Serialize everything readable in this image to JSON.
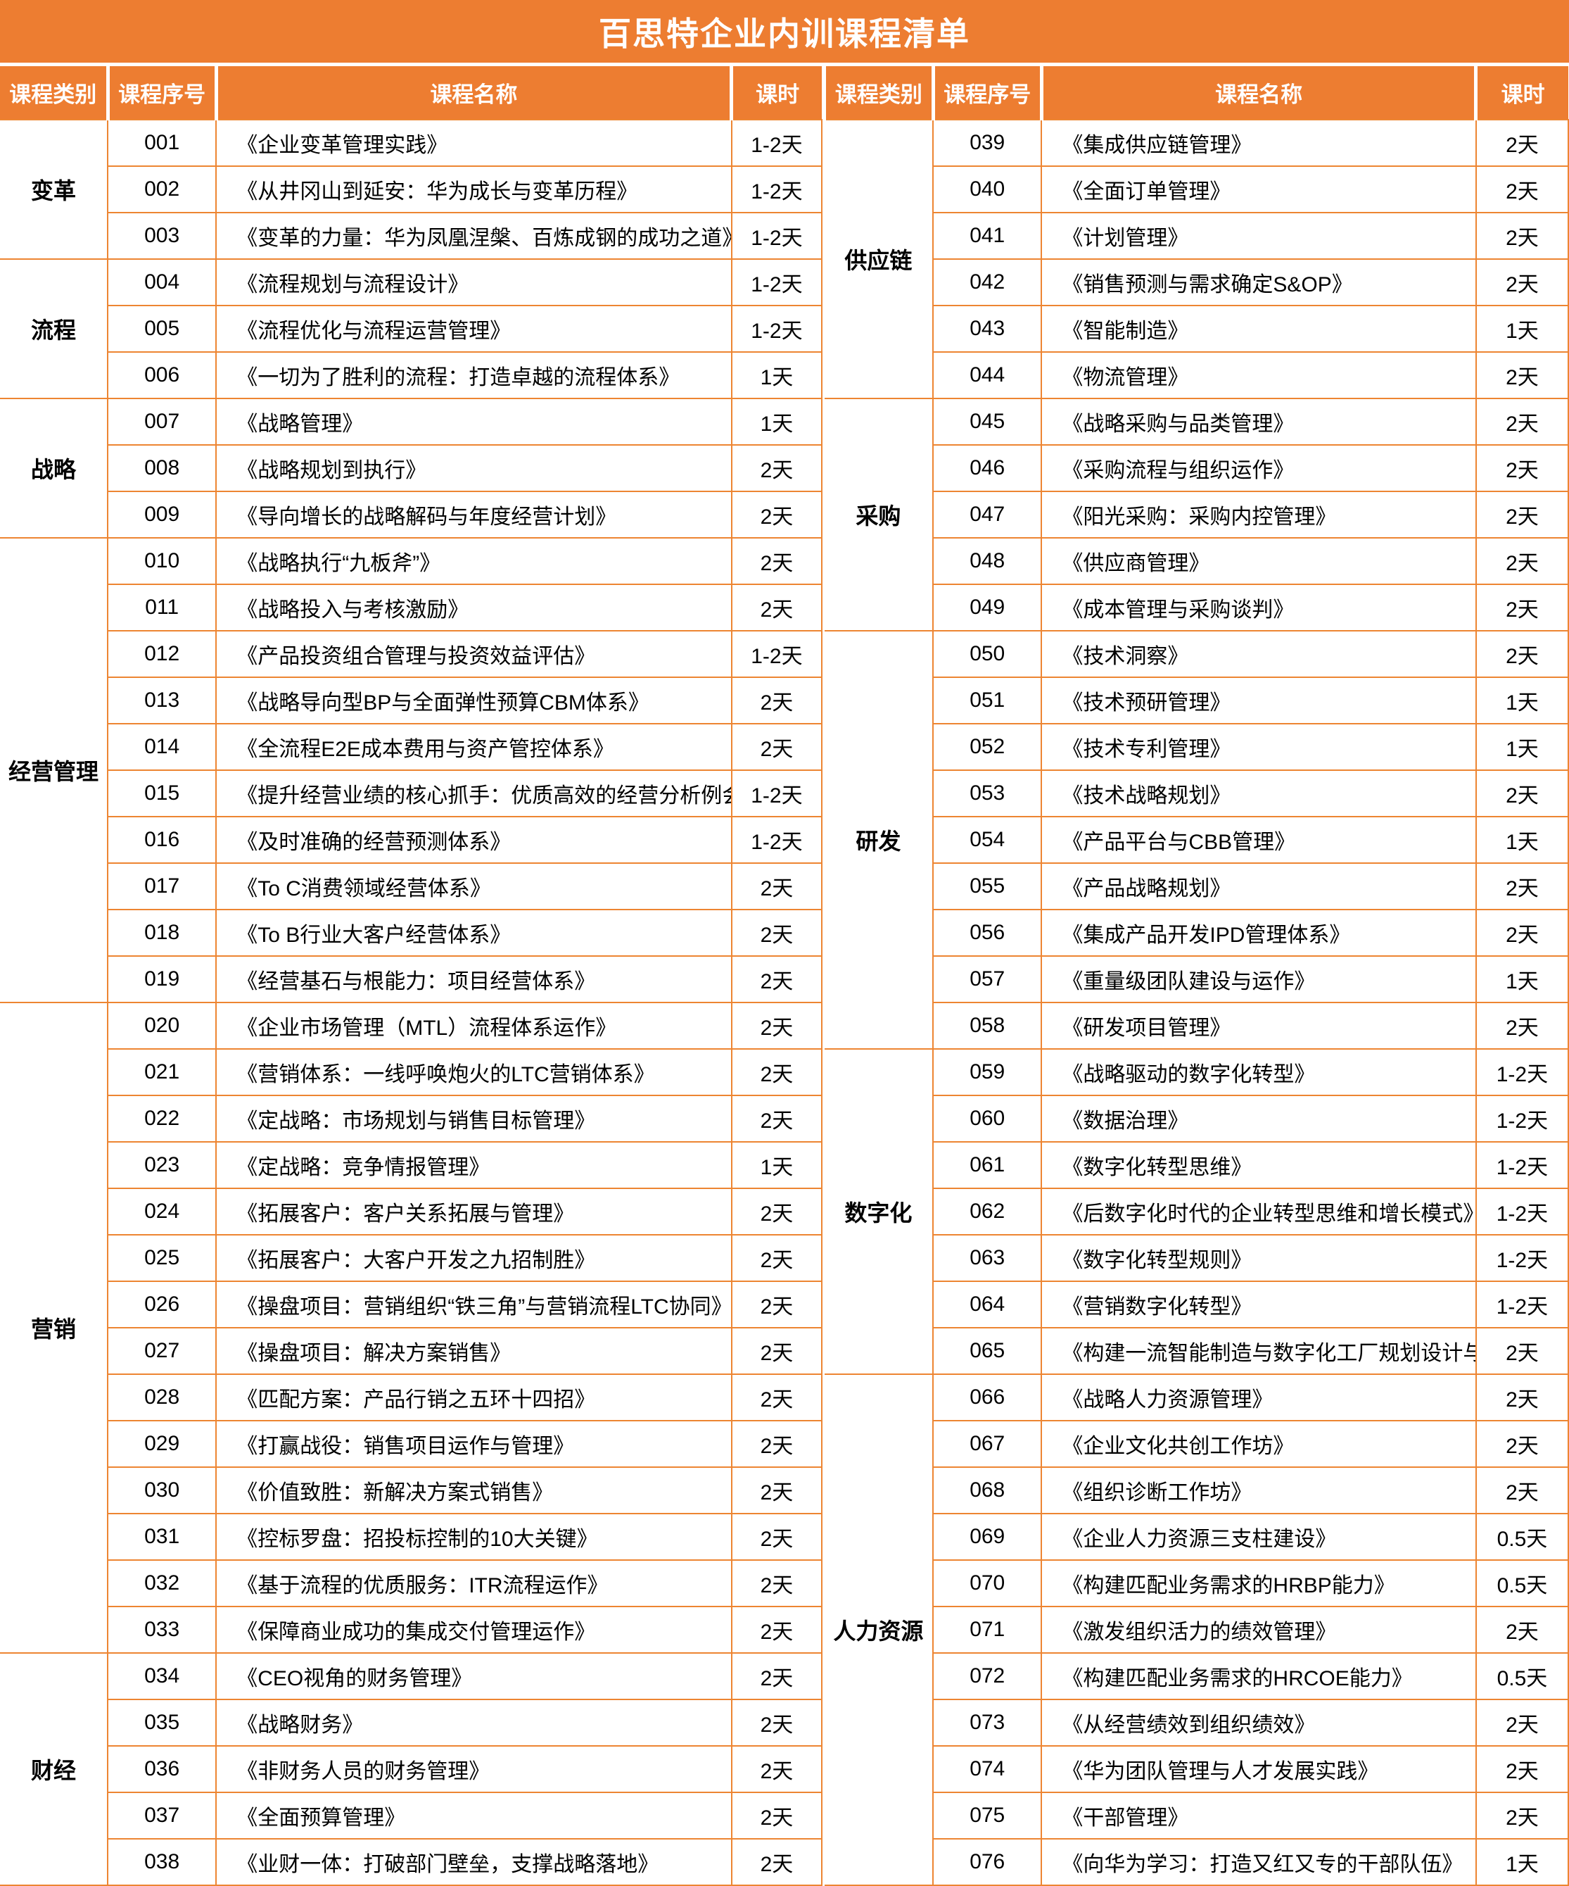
{
  "title": "百思特企业内训课程清单",
  "colors": {
    "accent": "#ED7D31",
    "line": "#ED8532",
    "header_text": "#FFFFFF",
    "body_text": "#000000"
  },
  "columns": {
    "category": "课程类别",
    "number": "课程序号",
    "name": "课程名称",
    "duration": "课时"
  },
  "left_table": {
    "groups": [
      {
        "category": "变革",
        "courses": [
          {
            "no": "001",
            "name": "《企业变革管理实践》",
            "duration": "1-2天"
          },
          {
            "no": "002",
            "name": "《从井冈山到延安：华为成长与变革历程》",
            "duration": "1-2天"
          },
          {
            "no": "003",
            "name": "《变革的力量：华为凤凰涅槃、百炼成钢的成功之道》",
            "duration": "1-2天"
          }
        ]
      },
      {
        "category": "流程",
        "courses": [
          {
            "no": "004",
            "name": "《流程规划与流程设计》",
            "duration": "1-2天"
          },
          {
            "no": "005",
            "name": "《流程优化与流程运营管理》",
            "duration": "1-2天"
          },
          {
            "no": "006",
            "name": "《一切为了胜利的流程：打造卓越的流程体系》",
            "duration": "1天"
          }
        ]
      },
      {
        "category": "战略",
        "courses": [
          {
            "no": "007",
            "name": "《战略管理》",
            "duration": "1天"
          },
          {
            "no": "008",
            "name": "《战略规划到执行》",
            "duration": "2天"
          },
          {
            "no": "009",
            "name": "《导向增长的战略解码与年度经营计划》",
            "duration": "2天"
          }
        ]
      },
      {
        "category": "经营管理",
        "courses": [
          {
            "no": "010",
            "name": "《战略执行“九板斧”》",
            "duration": "2天"
          },
          {
            "no": "011",
            "name": "《战略投入与考核激励》",
            "duration": "2天"
          },
          {
            "no": "012",
            "name": "《产品投资组合管理与投资效益评估》",
            "duration": "1-2天"
          },
          {
            "no": "013",
            "name": "《战略导向型BP与全面弹性预算CBM体系》",
            "duration": "2天"
          },
          {
            "no": "014",
            "name": "《全流程E2E成本费用与资产管控体系》",
            "duration": "2天"
          },
          {
            "no": "015",
            "name": "《提升经营业绩的核心抓手：优质高效的经营分析例会机制》",
            "duration": "1-2天"
          },
          {
            "no": "016",
            "name": "《及时准确的经营预测体系》",
            "duration": "1-2天"
          },
          {
            "no": "017",
            "name": "《To C消费领域经营体系》",
            "duration": "2天"
          },
          {
            "no": "018",
            "name": "《To B行业大客户经营体系》",
            "duration": "2天"
          },
          {
            "no": "019",
            "name": "《经营基石与根能力：项目经营体系》",
            "duration": "2天"
          }
        ]
      },
      {
        "category": "营销",
        "courses": [
          {
            "no": "020",
            "name": "《企业市场管理（MTL）流程体系运作》",
            "duration": "2天"
          },
          {
            "no": "021",
            "name": "《营销体系：一线呼唤炮火的LTC营销体系》",
            "duration": "2天"
          },
          {
            "no": "022",
            "name": "《定战略：市场规划与销售目标管理》",
            "duration": "2天"
          },
          {
            "no": "023",
            "name": "《定战略：竞争情报管理》",
            "duration": "1天"
          },
          {
            "no": "024",
            "name": "《拓展客户：客户关系拓展与管理》",
            "duration": "2天"
          },
          {
            "no": "025",
            "name": "《拓展客户：大客户开发之九招制胜》",
            "duration": "2天"
          },
          {
            "no": "026",
            "name": "《操盘项目：营销组织“铁三角”与营销流程LTC协同》",
            "duration": "2天"
          },
          {
            "no": "027",
            "name": "《操盘项目：解决方案销售》",
            "duration": "2天"
          },
          {
            "no": "028",
            "name": "《匹配方案：产品行销之五环十四招》",
            "duration": "2天"
          },
          {
            "no": "029",
            "name": "《打赢战役：销售项目运作与管理》",
            "duration": "2天"
          },
          {
            "no": "030",
            "name": "《价值致胜：新解决方案式销售》",
            "duration": "2天"
          },
          {
            "no": "031",
            "name": "《控标罗盘：招投标控制的10大关键》",
            "duration": "2天"
          },
          {
            "no": "032",
            "name": "《基于流程的优质服务：ITR流程运作》",
            "duration": "2天"
          },
          {
            "no": "033",
            "name": "《保障商业成功的集成交付管理运作》",
            "duration": "2天"
          }
        ]
      },
      {
        "category": "财经",
        "courses": [
          {
            "no": "034",
            "name": "《CEO视角的财务管理》",
            "duration": "2天"
          },
          {
            "no": "035",
            "name": "《战略财务》",
            "duration": "2天"
          },
          {
            "no": "036",
            "name": "《非财务人员的财务管理》",
            "duration": "2天"
          },
          {
            "no": "037",
            "name": "《全面预算管理》",
            "duration": "2天"
          },
          {
            "no": "038",
            "name": "《业财一体：打破部门壁垒，支撑战略落地》",
            "duration": "2天"
          }
        ]
      }
    ]
  },
  "right_table": {
    "groups": [
      {
        "category": "供应链",
        "courses": [
          {
            "no": "039",
            "name": "《集成供应链管理》",
            "duration": "2天"
          },
          {
            "no": "040",
            "name": "《全面订单管理》",
            "duration": "2天"
          },
          {
            "no": "041",
            "name": "《计划管理》",
            "duration": "2天"
          },
          {
            "no": "042",
            "name": "《销售预测与需求确定S&OP》",
            "duration": "2天"
          },
          {
            "no": "043",
            "name": "《智能制造》",
            "duration": "1天"
          },
          {
            "no": "044",
            "name": "《物流管理》",
            "duration": "2天"
          }
        ]
      },
      {
        "category": "采购",
        "courses": [
          {
            "no": "045",
            "name": "《战略采购与品类管理》",
            "duration": "2天"
          },
          {
            "no": "046",
            "name": "《采购流程与组织运作》",
            "duration": "2天"
          },
          {
            "no": "047",
            "name": "《阳光采购：采购内控管理》",
            "duration": "2天"
          },
          {
            "no": "048",
            "name": "《供应商管理》",
            "duration": "2天"
          },
          {
            "no": "049",
            "name": "《成本管理与采购谈判》",
            "duration": "2天"
          }
        ]
      },
      {
        "category": "研发",
        "courses": [
          {
            "no": "050",
            "name": "《技术洞察》",
            "duration": "2天"
          },
          {
            "no": "051",
            "name": "《技术预研管理》",
            "duration": "1天"
          },
          {
            "no": "052",
            "name": "《技术专利管理》",
            "duration": "1天"
          },
          {
            "no": "053",
            "name": "《技术战略规划》",
            "duration": "2天"
          },
          {
            "no": "054",
            "name": "《产品平台与CBB管理》",
            "duration": "1天"
          },
          {
            "no": "055",
            "name": "《产品战略规划》",
            "duration": "2天"
          },
          {
            "no": "056",
            "name": "《集成产品开发IPD管理体系》",
            "duration": "2天"
          },
          {
            "no": "057",
            "name": "《重量级团队建设与运作》",
            "duration": "1天"
          },
          {
            "no": "058",
            "name": "《研发项目管理》",
            "duration": "2天"
          }
        ]
      },
      {
        "category": "数字化",
        "courses": [
          {
            "no": "059",
            "name": "《战略驱动的数字化转型》",
            "duration": "1-2天"
          },
          {
            "no": "060",
            "name": "《数据治理》",
            "duration": "1-2天"
          },
          {
            "no": "061",
            "name": "《数字化转型思维》",
            "duration": "1-2天"
          },
          {
            "no": "062",
            "name": "《后数字化时代的企业转型思维和增长模式》",
            "duration": "1-2天"
          },
          {
            "no": "063",
            "name": "《数字化转型规则》",
            "duration": "1-2天"
          },
          {
            "no": "064",
            "name": "《营销数字化转型》",
            "duration": "1-2天"
          },
          {
            "no": "065",
            "name": "《构建一流智能制造与数字化工厂规划设计与评估》",
            "duration": "2天"
          }
        ]
      },
      {
        "category": "人力资源",
        "courses": [
          {
            "no": "066",
            "name": "《战略人力资源管理》",
            "duration": "2天"
          },
          {
            "no": "067",
            "name": "《企业文化共创工作坊》",
            "duration": "2天"
          },
          {
            "no": "068",
            "name": "《组织诊断工作坊》",
            "duration": "2天"
          },
          {
            "no": "069",
            "name": "《企业人力资源三支柱建设》",
            "duration": "0.5天"
          },
          {
            "no": "070",
            "name": "《构建匹配业务需求的HRBP能力》",
            "duration": "0.5天"
          },
          {
            "no": "071",
            "name": "《激发组织活力的绩效管理》",
            "duration": "2天"
          },
          {
            "no": "072",
            "name": "《构建匹配业务需求的HRCOE能力》",
            "duration": "0.5天"
          },
          {
            "no": "073",
            "name": "《从经营绩效到组织绩效》",
            "duration": "2天"
          },
          {
            "no": "074",
            "name": "《华为团队管理与人才发展实践》",
            "duration": "2天"
          },
          {
            "no": "075",
            "name": "《干部管理》",
            "duration": "2天"
          },
          {
            "no": "076",
            "name": "《向华为学习：打造又红又专的干部队伍》",
            "duration": "1天"
          }
        ]
      }
    ]
  }
}
